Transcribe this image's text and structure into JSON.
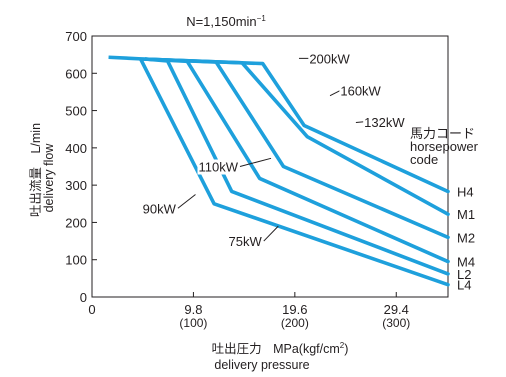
{
  "chart_data": {
    "type": "line",
    "title": "N=1,150min",
    "title_sup": "−1",
    "xlabel_ja": "吐出圧力",
    "xlabel_unit": "MPa(kgf/cm",
    "xlabel_unit_sup": "2",
    "xlabel_unit_close": ")",
    "xlabel_en": "delivery pressure",
    "ylabel_ja": "吐出流量",
    "ylabel_unit": "L/min",
    "ylabel_en": "delivery flow",
    "xlim": [
      0,
      34.4
    ],
    "ylim": [
      0,
      700
    ],
    "xticks": [
      {
        "value": 0,
        "label": "0",
        "sub": ""
      },
      {
        "value": 9.8,
        "label": "9.8",
        "sub": "(100)"
      },
      {
        "value": 19.6,
        "label": "19.6",
        "sub": "(200)"
      },
      {
        "value": 29.4,
        "label": "29.4",
        "sub": "(300)"
      }
    ],
    "yticks": [
      0,
      100,
      200,
      300,
      400,
      500,
      600,
      700
    ],
    "legend_title": [
      "馬力コード",
      "horsepower",
      "code"
    ],
    "line_color": "#1ea0dc",
    "series": [
      {
        "name": "H4",
        "points": [
          [
            5.2,
            638
          ],
          [
            16.5,
            626
          ],
          [
            20.5,
            460
          ],
          [
            34.4,
            283
          ]
        ]
      },
      {
        "name": "M1",
        "points": [
          [
            5.2,
            638
          ],
          [
            14.5,
            628
          ],
          [
            20.8,
            430
          ],
          [
            34.4,
            222
          ]
        ]
      },
      {
        "name": "M2",
        "points": [
          [
            5.2,
            638
          ],
          [
            12.0,
            630
          ],
          [
            18.5,
            350
          ],
          [
            34.4,
            160
          ]
        ]
      },
      {
        "name": "M4",
        "points": [
          [
            5.2,
            638
          ],
          [
            9.2,
            632
          ],
          [
            16.2,
            318
          ],
          [
            34.4,
            95
          ]
        ]
      },
      {
        "name": "L2",
        "points": [
          [
            5.2,
            638
          ],
          [
            7.3,
            633
          ],
          [
            13.5,
            283
          ],
          [
            34.4,
            62
          ]
        ]
      },
      {
        "name": "L4",
        "points": [
          [
            5.2,
            638
          ],
          [
            4.7,
            638
          ],
          [
            11.8,
            250
          ],
          [
            34.4,
            33
          ]
        ]
      }
    ],
    "shared_start": [
      [
        1.6,
        643
      ],
      [
        5.2,
        638
      ]
    ],
    "annotations": [
      {
        "text": "200kW",
        "at": [
          20.0,
          640
        ],
        "label": [
          21.0,
          640
        ]
      },
      {
        "text": "160kW",
        "at": [
          23.0,
          540
        ],
        "label": [
          24.0,
          554
        ]
      },
      {
        "text": "132kW",
        "at": [
          25.5,
          468
        ],
        "label": [
          26.3,
          470
        ]
      },
      {
        "text": "110kW",
        "at": [
          17.3,
          372
        ],
        "label": [
          14.3,
          350
        ]
      },
      {
        "text": "90kW",
        "at": [
          10.0,
          275
        ],
        "label": [
          8.3,
          238
        ]
      },
      {
        "text": "75kW",
        "at": [
          18.0,
          190
        ],
        "label": [
          16.6,
          150
        ]
      }
    ]
  }
}
